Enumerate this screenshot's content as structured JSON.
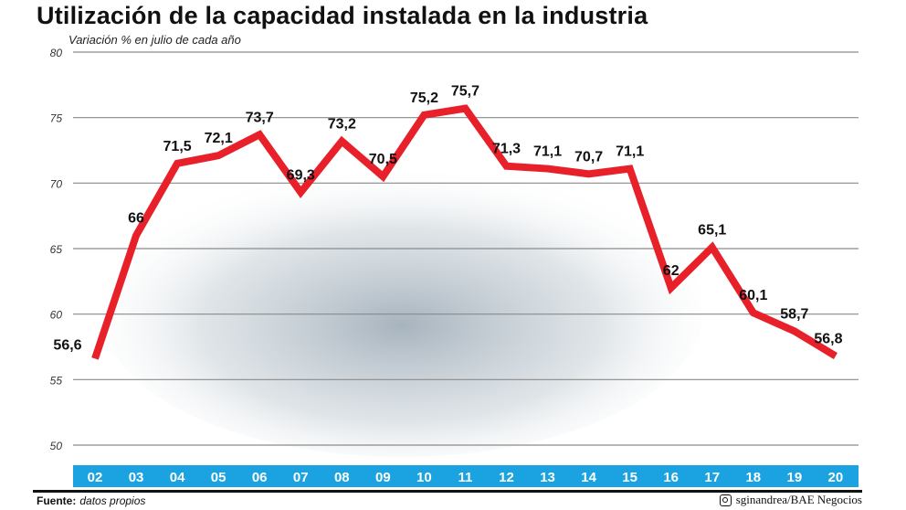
{
  "chart_data": {
    "type": "line",
    "title": "Utilización de la capacidad instalada en la industria",
    "subtitle": "Variación % en julio de cada año",
    "categories": [
      "02",
      "03",
      "04",
      "05",
      "06",
      "07",
      "08",
      "09",
      "10",
      "11",
      "12",
      "13",
      "14",
      "15",
      "16",
      "17",
      "18",
      "19",
      "20"
    ],
    "values": [
      56.6,
      66,
      71.5,
      72.1,
      73.7,
      69.3,
      73.2,
      70.5,
      75.2,
      75.7,
      71.3,
      71.1,
      70.7,
      71.1,
      62,
      65.1,
      60.1,
      58.7,
      56.8
    ],
    "labels": [
      "56,6",
      "66",
      "71,5",
      "72,1",
      "73,7",
      "69,3",
      "73,2",
      "70,5",
      "75,2",
      "75,7",
      "71,3",
      "71,1",
      "70,7",
      "71,1",
      "62",
      "65,1",
      "60,1",
      "58,7",
      "56,8"
    ],
    "ylim": [
      50,
      80
    ],
    "yticks": [
      80,
      75,
      70,
      65,
      60,
      55,
      50
    ],
    "grid": true,
    "line_color": "#e8202a",
    "axis_band_color": "#1aa3e0"
  },
  "footer": {
    "source_label": "Fuente:",
    "source_value": "datos propios",
    "credit": "sginandrea/BAE Negocios",
    "credit_icon": "instagram-icon"
  }
}
